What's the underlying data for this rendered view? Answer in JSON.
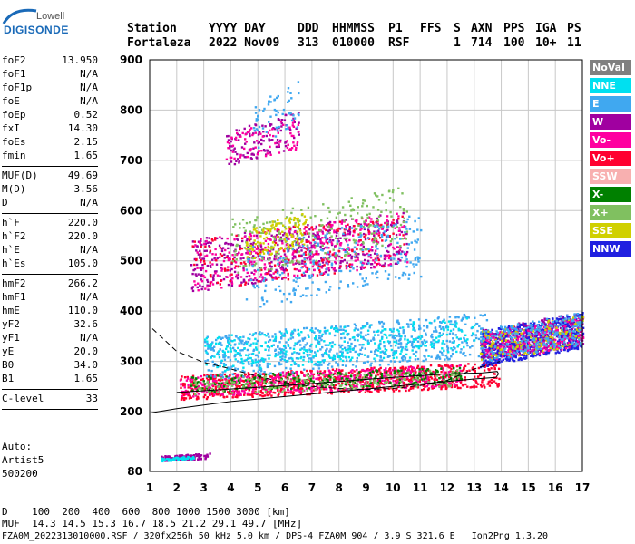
{
  "logo": {
    "top": "Lowell",
    "main": "DIGISONDE"
  },
  "header": {
    "labels": [
      "Station",
      "YYYY DAY",
      "DDD",
      "HHMMSS",
      "P1",
      "FFS",
      "S",
      "AXN",
      "PPS",
      "IGA",
      "PS"
    ],
    "values": [
      "Fortaleza",
      "2022 Nov09",
      "313",
      "010000",
      "RSF",
      "",
      "1",
      "714",
      "100",
      "10+",
      "11"
    ]
  },
  "params_group1": [
    {
      "name": "foF2",
      "value": "13.950"
    },
    {
      "name": "foF1",
      "value": "N/A"
    },
    {
      "name": "foF1p",
      "value": "N/A"
    },
    {
      "name": "foE",
      "value": "N/A"
    },
    {
      "name": "foEp",
      "value": "0.52"
    },
    {
      "name": "fxI",
      "value": "14.30"
    },
    {
      "name": "foEs",
      "value": "2.15"
    },
    {
      "name": "fmin",
      "value": "1.65"
    }
  ],
  "params_group2": [
    {
      "name": "MUF(D)",
      "value": "49.69"
    },
    {
      "name": "M(D)",
      "value": "3.56"
    },
    {
      "name": "D",
      "value": "N/A"
    }
  ],
  "params_group3": [
    {
      "name": "h`F",
      "value": "220.0"
    },
    {
      "name": "h`F2",
      "value": "220.0"
    },
    {
      "name": "h`E",
      "value": "N/A"
    },
    {
      "name": "h`Es",
      "value": "105.0"
    }
  ],
  "params_group4": [
    {
      "name": "hmF2",
      "value": "266.2"
    },
    {
      "name": "hmF1",
      "value": "N/A"
    },
    {
      "name": "hmE",
      "value": "110.0"
    },
    {
      "name": "yF2",
      "value": "32.6"
    },
    {
      "name": "yF1",
      "value": "N/A"
    },
    {
      "name": "yE",
      "value": "20.0"
    },
    {
      "name": "B0",
      "value": "34.0"
    },
    {
      "name": "B1",
      "value": "1.65"
    }
  ],
  "params_group5": [
    {
      "name": "C-level",
      "value": "33"
    }
  ],
  "software": {
    "line1": "Auto:",
    "line2": "Artist5",
    "line3": "500200"
  },
  "legend": [
    {
      "label": "NoVal",
      "color": "#808080"
    },
    {
      "label": "NNE",
      "color": "#00e0f0"
    },
    {
      "label": "E",
      "color": "#40a8f0"
    },
    {
      "label": "W",
      "color": "#a000a0"
    },
    {
      "label": "Vo-",
      "color": "#ff00a0"
    },
    {
      "label": "Vo+",
      "color": "#ff0030"
    },
    {
      "label": "SSW",
      "color": "#f8b0b0"
    },
    {
      "label": "X-",
      "color": "#008000"
    },
    {
      "label": "X+",
      "color": "#80c060"
    },
    {
      "label": "SSE",
      "color": "#d0d000"
    },
    {
      "label": "NNW",
      "color": "#2020e0"
    }
  ],
  "footer": {
    "d_line": "D    100  200  400  600  800 1000 1500 3000 [km]",
    "muf_line": "MUF  14.3 14.5 15.3 16.7 18.5 21.2 29.1 49.7 [MHz]",
    "file_line": "FZA0M_2022313010000.RSF / 320fx256h 50 kHz 5.0 km / DPS-4 FZA0M 904 / 3.9 S 321.6 E   Ion2Png 1.3.20"
  },
  "chart_data": {
    "type": "scatter",
    "xlim": [
      1,
      17
    ],
    "ylim": [
      80,
      900
    ],
    "xticks": [
      1,
      2,
      3,
      4,
      5,
      6,
      7,
      8,
      9,
      10,
      11,
      12,
      13,
      14,
      15,
      16,
      17
    ],
    "yticks": [
      80,
      200,
      300,
      400,
      500,
      600,
      700,
      800,
      900
    ],
    "grid": true,
    "legend_position": "right",
    "traces": [
      {
        "name": "profile-dashed",
        "style": "dashed",
        "points": [
          [
            1.1,
            365
          ],
          [
            2,
            320
          ],
          [
            3,
            298
          ],
          [
            4,
            285
          ],
          [
            5,
            270
          ],
          [
            6,
            258
          ],
          [
            7,
            250
          ],
          [
            8,
            246
          ],
          [
            9,
            244
          ],
          [
            10,
            246
          ],
          [
            11,
            252
          ],
          [
            12,
            262
          ],
          [
            13,
            285
          ],
          [
            13.95,
            300
          ]
        ]
      },
      {
        "name": "profile-solid",
        "style": "solid",
        "points": [
          [
            1,
            197
          ],
          [
            2,
            206
          ],
          [
            3,
            213
          ],
          [
            4,
            220
          ],
          [
            5,
            225
          ],
          [
            6,
            230
          ],
          [
            7,
            235
          ],
          [
            8,
            240
          ],
          [
            9,
            245
          ],
          [
            10,
            250
          ],
          [
            11,
            255
          ],
          [
            12,
            260
          ],
          [
            13,
            265
          ],
          [
            13.8,
            268
          ],
          [
            13.9,
            275
          ],
          [
            13.85,
            280
          ],
          [
            13.3,
            277
          ],
          [
            12,
            275
          ],
          [
            10,
            268
          ],
          [
            8,
            260
          ],
          [
            6,
            252
          ],
          [
            4,
            245
          ],
          [
            2,
            238
          ]
        ]
      }
    ],
    "clusters": [
      {
        "color": "#ff0030",
        "x": [
          2.1,
          13.9
        ],
        "y": [
          225,
          300
        ],
        "n": 900
      },
      {
        "color": "#ff00a0",
        "x": [
          2.1,
          12.5
        ],
        "y": [
          230,
          295
        ],
        "n": 450
      },
      {
        "color": "#008000",
        "x": [
          2.5,
          12.5
        ],
        "y": [
          240,
          290
        ],
        "n": 250
      },
      {
        "color": "#80c060",
        "x": [
          2.5,
          12.5
        ],
        "y": [
          235,
          285
        ],
        "n": 200
      },
      {
        "color": "#40a8f0",
        "x": [
          3,
          13.5
        ],
        "y": [
          265,
          400
        ],
        "n": 700
      },
      {
        "color": "#00e0f0",
        "x": [
          3,
          13
        ],
        "y": [
          280,
          390
        ],
        "n": 350
      },
      {
        "color": "#2020e0",
        "x": [
          13.2,
          17
        ],
        "y": [
          290,
          400
        ],
        "n": 700
      },
      {
        "color": "#a000a0",
        "x": [
          13.2,
          17
        ],
        "y": [
          300,
          400
        ],
        "n": 250
      },
      {
        "color": "#ff00a0",
        "x": [
          13.2,
          17
        ],
        "y": [
          300,
          390
        ],
        "n": 250
      },
      {
        "color": "#d0d000",
        "x": [
          13.2,
          17
        ],
        "y": [
          300,
          395
        ],
        "n": 150
      },
      {
        "color": "#40a8f0",
        "x": [
          13.2,
          17
        ],
        "y": [
          300,
          400
        ],
        "n": 250
      },
      {
        "color": "#a000a0",
        "x": [
          2.5,
          10.5
        ],
        "y": [
          440,
          600
        ],
        "n": 500
      },
      {
        "color": "#ff00a0",
        "x": [
          2.5,
          10.5
        ],
        "y": [
          440,
          600
        ],
        "n": 350
      },
      {
        "color": "#ff0030",
        "x": [
          2.5,
          10.5
        ],
        "y": [
          440,
          600
        ],
        "n": 200
      },
      {
        "color": "#80c060",
        "x": [
          4,
          10.5
        ],
        "y": [
          470,
          650
        ],
        "n": 250
      },
      {
        "color": "#d0d000",
        "x": [
          4.5,
          6.8
        ],
        "y": [
          500,
          600
        ],
        "n": 120
      },
      {
        "color": "#40a8f0",
        "x": [
          4.5,
          11
        ],
        "y": [
          400,
          600
        ],
        "n": 250
      },
      {
        "color": "#a000a0",
        "x": [
          3.8,
          6.5
        ],
        "y": [
          690,
          800
        ],
        "n": 120
      },
      {
        "color": "#ff00a0",
        "x": [
          3.8,
          6.5
        ],
        "y": [
          690,
          790
        ],
        "n": 80
      },
      {
        "color": "#40a8f0",
        "x": [
          4.8,
          6.5
        ],
        "y": [
          720,
          860
        ],
        "n": 60
      },
      {
        "color": "#a000a0",
        "x": [
          1.4,
          3.2
        ],
        "y": [
          102,
          118
        ],
        "n": 110
      },
      {
        "color": "#00e0f0",
        "x": [
          1.4,
          2.6
        ],
        "y": [
          102,
          112
        ],
        "n": 60
      }
    ]
  }
}
